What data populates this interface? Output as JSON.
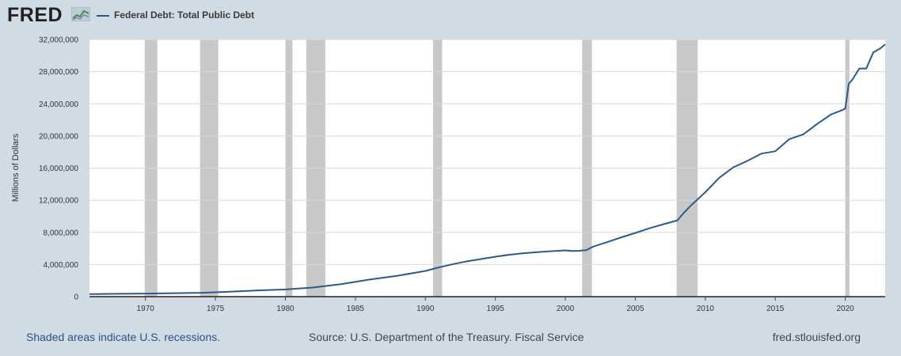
{
  "header": {
    "logo_text": "FRED",
    "series_title": "Federal Debt: Total Public Debt"
  },
  "footer": {
    "recession_note": "Shaded areas indicate U.S. recessions.",
    "source": "Source: U.S. Department of the Treasury. Fiscal Service",
    "site": "fred.stlouisfed.org"
  },
  "colors": {
    "background": "#d1dbe4",
    "plot_background": "#ffffff",
    "series_line": "#2b5a8a",
    "recession_shade": "#c8c8c8",
    "grid": "#d8d8d8"
  },
  "chart_data": {
    "type": "line",
    "title": "Federal Debt: Total Public Debt",
    "xlabel": "",
    "ylabel": "Millions of Dollars",
    "xlim": [
      1966.0,
      2022.85
    ],
    "ylim": [
      0,
      32000000
    ],
    "x_ticks": [
      1970,
      1975,
      1980,
      1985,
      1990,
      1995,
      2000,
      2005,
      2010,
      2015,
      2020
    ],
    "y_ticks": [
      0,
      4000000,
      8000000,
      12000000,
      16000000,
      20000000,
      24000000,
      28000000,
      32000000
    ],
    "y_tick_labels": [
      "0",
      "4,000,000",
      "8,000,000",
      "12,000,000",
      "16,000,000",
      "20,000,000",
      "24,000,000",
      "28,000,000",
      "32,000,000"
    ],
    "grid": true,
    "legend": "top-left",
    "recessions": [
      [
        1969.95,
        1970.85
      ],
      [
        1973.9,
        1975.2
      ],
      [
        1980.0,
        1980.5
      ],
      [
        1981.5,
        1982.85
      ],
      [
        1990.55,
        1991.2
      ],
      [
        2001.2,
        2001.9
      ],
      [
        2007.95,
        2009.45
      ],
      [
        2020.0,
        2020.3
      ]
    ],
    "series": [
      {
        "name": "Federal Debt: Total Public Debt",
        "x": [
          1966,
          1968,
          1970,
          1972,
          1974,
          1976,
          1978,
          1980,
          1982,
          1984,
          1986,
          1988,
          1990,
          1991,
          1992,
          1993,
          1994,
          1995,
          1996,
          1997,
          1998,
          1999,
          2000,
          2000.5,
          2001,
          2001.5,
          2002,
          2003,
          2004,
          2005,
          2006,
          2007,
          2008,
          2008.5,
          2009,
          2010,
          2011,
          2012,
          2013,
          2014,
          2015,
          2016,
          2017,
          2018,
          2019,
          2019.75,
          2020.0,
          2020.25,
          2020.5,
          2021,
          2021.5,
          2022,
          2022.5,
          2022.85
        ],
        "values": [
          320000,
          350000,
          380000,
          430000,
          480000,
          620000,
          780000,
          900000,
          1140000,
          1570000,
          2130000,
          2600000,
          3200000,
          3660000,
          4060000,
          4410000,
          4690000,
          4970000,
          5220000,
          5410000,
          5530000,
          5660000,
          5760000,
          5680000,
          5710000,
          5800000,
          6230000,
          6800000,
          7380000,
          7930000,
          8510000,
          9010000,
          9490000,
          10500000,
          11400000,
          13000000,
          14800000,
          16100000,
          16900000,
          17800000,
          18100000,
          19600000,
          20200000,
          21500000,
          22700000,
          23200000,
          23400000,
          26500000,
          27000000,
          28400000,
          28400000,
          30400000,
          30900000,
          31400000
        ]
      }
    ]
  }
}
